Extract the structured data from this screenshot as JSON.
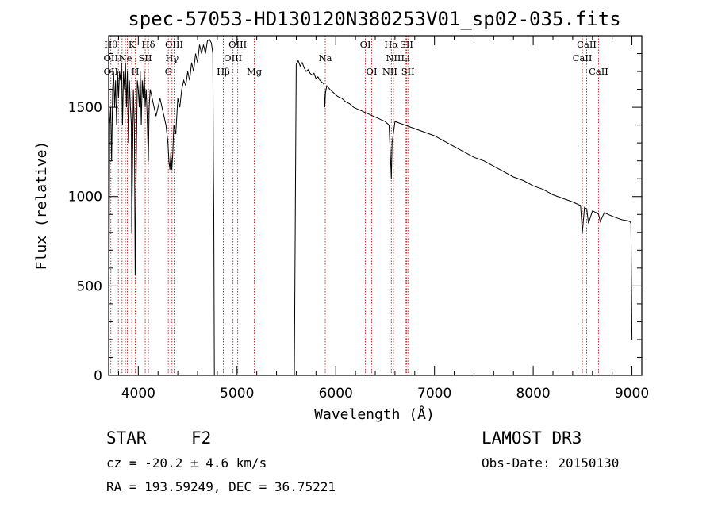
{
  "chart_data": {
    "type": "line",
    "title": "spec-57053-HD130120N380253V01_sp02-035.fits",
    "xlabel": "Wavelength (Å)",
    "ylabel": "Flux (relative)",
    "xlim": [
      3700,
      9100
    ],
    "ylim": [
      0,
      1900
    ],
    "x_ticks": [
      4000,
      5000,
      6000,
      7000,
      8000,
      9000
    ],
    "y_ticks": [
      0,
      500,
      1000,
      1500
    ],
    "x_tick_labels": [
      "4000",
      "5000",
      "6000",
      "7000",
      "8000",
      "9000"
    ],
    "y_tick_labels": [
      "0",
      "500",
      "1000",
      "1500"
    ],
    "series": [
      {
        "name": "flux",
        "x": [
          3700,
          3710,
          3720,
          3730,
          3740,
          3750,
          3760,
          3770,
          3780,
          3790,
          3800,
          3810,
          3820,
          3830,
          3840,
          3850,
          3860,
          3870,
          3880,
          3890,
          3900,
          3910,
          3920,
          3930,
          3933,
          3940,
          3950,
          3960,
          3968,
          3980,
          3990,
          4000,
          4010,
          4020,
          4030,
          4040,
          4050,
          4060,
          4070,
          4080,
          4090,
          4102,
          4110,
          4120,
          4140,
          4160,
          4180,
          4200,
          4220,
          4240,
          4260,
          4280,
          4300,
          4310,
          4320,
          4330,
          4340,
          4350,
          4360,
          4380,
          4400,
          4420,
          4440,
          4460,
          4480,
          4500,
          4520,
          4540,
          4560,
          4580,
          4600,
          4620,
          4640,
          4660,
          4680,
          4700,
          4720,
          4740,
          4755,
          4760,
          4765,
          4770,
          5580,
          5600,
          5620,
          5640,
          5660,
          5680,
          5700,
          5720,
          5740,
          5760,
          5780,
          5800,
          5820,
          5840,
          5860,
          5880,
          5890,
          5896,
          5910,
          5940,
          5980,
          6020,
          6060,
          6100,
          6140,
          6180,
          6220,
          6260,
          6300,
          6340,
          6380,
          6420,
          6460,
          6500,
          6540,
          6556,
          6563,
          6570,
          6600,
          6650,
          6700,
          6750,
          6800,
          6900,
          7000,
          7100,
          7200,
          7300,
          7400,
          7500,
          7600,
          7700,
          7800,
          7900,
          8000,
          8100,
          8200,
          8300,
          8400,
          8480,
          8498,
          8520,
          8542,
          8560,
          8600,
          8640,
          8662,
          8680,
          8720,
          8760,
          8800,
          8850,
          8900,
          8950,
          8980,
          8990,
          9000
        ],
        "y": [
          0,
          1400,
          1500,
          1200,
          1600,
          1700,
          1500,
          1650,
          1400,
          1700,
          1550,
          1700,
          1650,
          1750,
          1400,
          1700,
          1600,
          1750,
          1500,
          1700,
          1300,
          1650,
          1500,
          1400,
          800,
          1100,
          1600,
          1400,
          560,
          1200,
          1650,
          1600,
          1500,
          1700,
          1400,
          1650,
          1550,
          1700,
          1500,
          1600,
          1450,
          1200,
          1500,
          1600,
          1550,
          1500,
          1450,
          1500,
          1550,
          1500,
          1450,
          1400,
          1300,
          1200,
          1150,
          1250,
          1150,
          1250,
          1400,
          1350,
          1550,
          1500,
          1600,
          1650,
          1620,
          1700,
          1650,
          1750,
          1700,
          1800,
          1750,
          1850,
          1800,
          1850,
          1800,
          1870,
          1880,
          1860,
          1800,
          1200,
          900,
          0,
          0,
          1740,
          1760,
          1730,
          1750,
          1720,
          1700,
          1710,
          1690,
          1680,
          1690,
          1660,
          1670,
          1650,
          1640,
          1630,
          1500,
          1580,
          1620,
          1600,
          1580,
          1560,
          1550,
          1530,
          1520,
          1500,
          1490,
          1480,
          1470,
          1460,
          1450,
          1440,
          1430,
          1420,
          1400,
          1200,
          1100,
          1300,
          1420,
          1410,
          1400,
          1390,
          1380,
          1360,
          1340,
          1310,
          1280,
          1250,
          1220,
          1200,
          1170,
          1140,
          1110,
          1090,
          1060,
          1040,
          1010,
          990,
          970,
          950,
          800,
          940,
          930,
          850,
          920,
          910,
          900,
          860,
          910,
          900,
          890,
          880,
          870,
          865,
          860,
          850,
          200
        ]
      }
    ],
    "line_markers": [
      {
        "w": 3722,
        "row1": "Hθ",
        "row2": "OII",
        "row3": "OII"
      },
      {
        "w": 3798,
        "row1": "",
        "row2": "",
        "row3": ""
      },
      {
        "w": 3835,
        "row1": "",
        "row2": "",
        "row3": ""
      },
      {
        "w": 3869,
        "row1": "",
        "row2": "Ne",
        "row3": ""
      },
      {
        "w": 3889,
        "row1": "",
        "row2": "",
        "row3": ""
      },
      {
        "w": 3934,
        "row1": "K",
        "row2": "",
        "row3": ""
      },
      {
        "w": 3969,
        "row1": "",
        "row2": "",
        "row3": "H"
      },
      {
        "w": 4070,
        "row1": "",
        "row2": "SII",
        "row3": ""
      },
      {
        "w": 4102,
        "row1": "Hδ",
        "row2": "",
        "row3": ""
      },
      {
        "w": 4304,
        "row1": "",
        "row2": "",
        "row3": "G"
      },
      {
        "w": 4341,
        "row1": "",
        "row2": "Hγ",
        "row3": ""
      },
      {
        "w": 4363,
        "row1": "OIII",
        "row2": "",
        "row3": ""
      },
      {
        "w": 4861,
        "row1": "",
        "row2": "",
        "row3": "Hβ"
      },
      {
        "w": 4959,
        "row1": "",
        "row2": "OIII",
        "row3": ""
      },
      {
        "w": 5007,
        "row1": "OIII",
        "row2": "",
        "row3": ""
      },
      {
        "w": 5175,
        "row1": "",
        "row2": "",
        "row3": "Mg"
      },
      {
        "w": 5894,
        "row1": "",
        "row2": "Na",
        "row3": ""
      },
      {
        "w": 6300,
        "row1": "OI",
        "row2": "",
        "row3": ""
      },
      {
        "w": 6364,
        "row1": "",
        "row2": "",
        "row3": "OI"
      },
      {
        "w": 6548,
        "row1": "",
        "row2": "",
        "row3": "NII"
      },
      {
        "w": 6563,
        "row1": "Hα",
        "row2": "",
        "row3": ""
      },
      {
        "w": 6584,
        "row1": "",
        "row2": "NII",
        "row3": ""
      },
      {
        "w": 6707,
        "row1": "",
        "row2": "Li",
        "row3": ""
      },
      {
        "w": 6717,
        "row1": "SII",
        "row2": "",
        "row3": ""
      },
      {
        "w": 6731,
        "row1": "",
        "row2": "",
        "row3": "SII"
      },
      {
        "w": 8498,
        "row1": "",
        "row2": "CaII",
        "row3": ""
      },
      {
        "w": 8542,
        "row1": "CaII",
        "row2": "",
        "row3": ""
      },
      {
        "w": 8662,
        "row1": "",
        "row2": "",
        "row3": "CaII"
      }
    ]
  },
  "info": {
    "object_class": "STAR",
    "subclass": "F2",
    "survey": "LAMOST DR3",
    "redshift": "cz = -20.2 ± 4.6 km/s",
    "obs_date": "Obs-Date: 20150130",
    "coords": "RA = 193.59249, DEC =  36.75221"
  },
  "colors": {
    "axes": "#000000",
    "spectrum": "#000000",
    "line_marker": "#b22222",
    "background": "#ffffff"
  }
}
